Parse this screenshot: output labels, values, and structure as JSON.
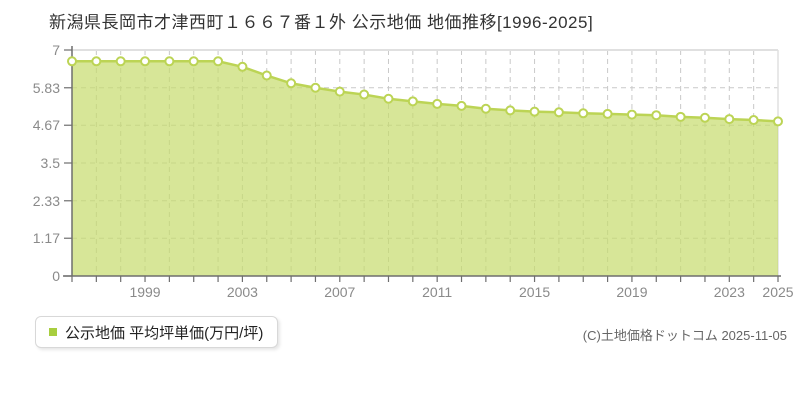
{
  "legend": {
    "label": "公示地価 平均坪単価(万円/坪)"
  },
  "footer": {
    "copyright": "(C)土地価格ドットコム 2025-11-05"
  },
  "colors": {
    "series_line": "#bcd455",
    "series_fill": "#c6db6c",
    "marker_fill": "#ffffff",
    "legend_swatch": "#a8ce3f",
    "grid": "#c9c9c9",
    "plot_border": "#e0e0e0",
    "axis": "#6e6e6e",
    "tick_label": "#8a8a8a",
    "title_text": "#333333"
  },
  "chart_data": {
    "type": "area",
    "title": "新潟県長岡市才津西町１６６７番１外 公示地価 地価推移[1996-2025]",
    "xlabel": "",
    "ylabel": "公示地価 平均坪単価(万円/坪)",
    "xlim": [
      1996,
      2025
    ],
    "ylim": [
      0,
      7
    ],
    "xticks": [
      1999,
      2003,
      2007,
      2011,
      2015,
      2019,
      2023,
      2025
    ],
    "yticks": [
      0,
      1.17,
      2.33,
      3.5,
      4.67,
      5.83,
      7
    ],
    "grid": true,
    "legend_position": "bottom-left",
    "series": [
      {
        "name": "公示地価 平均坪単価(万円/坪)",
        "x": [
          1996,
          1997,
          1998,
          1999,
          2000,
          2001,
          2002,
          2003,
          2004,
          2005,
          2006,
          2007,
          2008,
          2009,
          2010,
          2011,
          2012,
          2013,
          2014,
          2015,
          2016,
          2017,
          2018,
          2019,
          2020,
          2021,
          2022,
          2023,
          2024,
          2025
        ],
        "values": [
          6.65,
          6.65,
          6.65,
          6.65,
          6.65,
          6.65,
          6.65,
          6.48,
          6.21,
          5.97,
          5.83,
          5.71,
          5.62,
          5.49,
          5.41,
          5.33,
          5.27,
          5.18,
          5.13,
          5.09,
          5.07,
          5.04,
          5.02,
          5.0,
          4.98,
          4.93,
          4.9,
          4.86,
          4.83,
          4.79
        ]
      }
    ]
  }
}
